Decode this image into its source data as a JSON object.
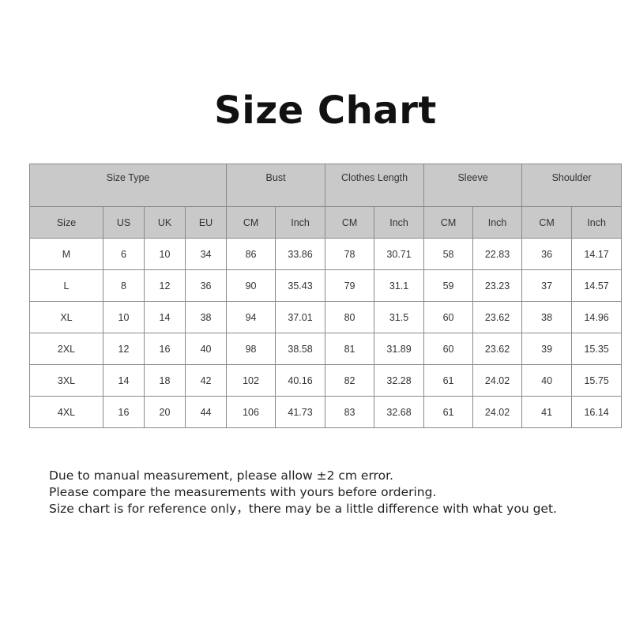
{
  "title": "Size Chart",
  "table": {
    "group_headers": [
      "Size Type",
      "Bust",
      "Clothes Length",
      "Sleeve",
      "Shoulder"
    ],
    "sub_headers": [
      "Size",
      "US",
      "UK",
      "EU",
      "CM",
      "Inch",
      "CM",
      "Inch",
      "CM",
      "Inch",
      "CM",
      "Inch"
    ],
    "rows": [
      [
        "M",
        "6",
        "10",
        "34",
        "86",
        "33.86",
        "78",
        "30.71",
        "58",
        "22.83",
        "36",
        "14.17"
      ],
      [
        "L",
        "8",
        "12",
        "36",
        "90",
        "35.43",
        "79",
        "31.1",
        "59",
        "23.23",
        "37",
        "14.57"
      ],
      [
        "XL",
        "10",
        "14",
        "38",
        "94",
        "37.01",
        "80",
        "31.5",
        "60",
        "23.62",
        "38",
        "14.96"
      ],
      [
        "2XL",
        "12",
        "16",
        "40",
        "98",
        "38.58",
        "81",
        "31.89",
        "60",
        "23.62",
        "39",
        "15.35"
      ],
      [
        "3XL",
        "14",
        "18",
        "42",
        "102",
        "40.16",
        "82",
        "32.28",
        "61",
        "24.02",
        "40",
        "15.75"
      ],
      [
        "4XL",
        "16",
        "20",
        "44",
        "106",
        "41.73",
        "83",
        "32.68",
        "61",
        "24.02",
        "41",
        "16.14"
      ]
    ]
  },
  "notes": [
    "Due to manual measurement, please allow ±2 cm error.",
    "Please compare the measurements with yours before ordering.",
    "Size chart is for reference only，there may be a little difference with what you get."
  ],
  "colors": {
    "header_fill": "#c9c9c9",
    "border": "#8a8a8a"
  }
}
